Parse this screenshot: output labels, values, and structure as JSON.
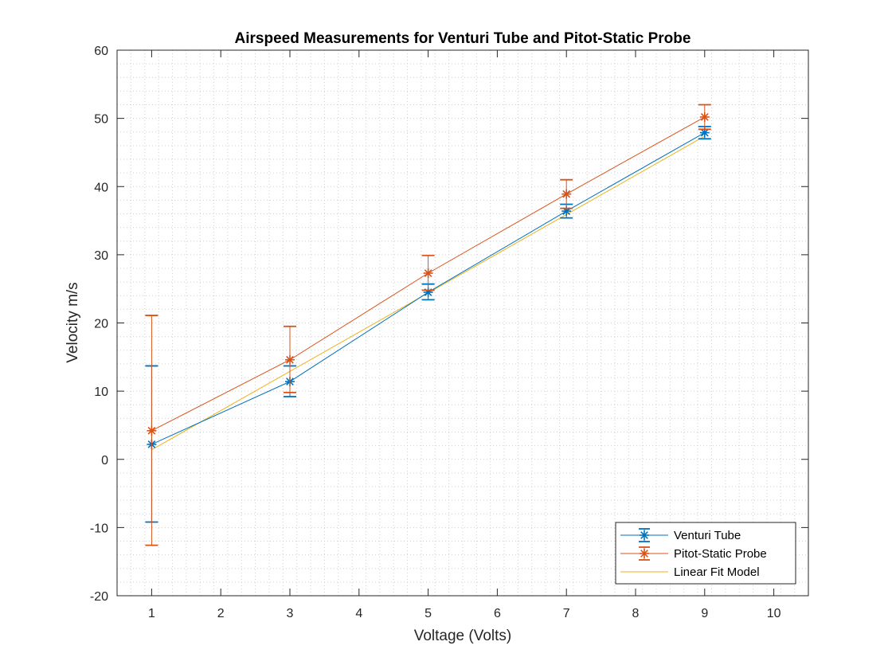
{
  "chart_data": {
    "type": "line",
    "title": "Airspeed Measurements for Venturi Tube and Pitot-Static Probe",
    "xlabel": "Voltage (Volts)",
    "ylabel": "Velocity m/s",
    "xlim": [
      0.5,
      10.5
    ],
    "ylim": [
      -20,
      60
    ],
    "xticks": [
      1,
      2,
      3,
      4,
      5,
      6,
      7,
      8,
      9,
      10
    ],
    "yticks": [
      -20,
      -10,
      0,
      10,
      20,
      30,
      40,
      50,
      60
    ],
    "grid": "minor-dotted",
    "legend_position": "bottom-right",
    "x": [
      1,
      3,
      5,
      7,
      9
    ],
    "series": [
      {
        "name": "Venturi Tube",
        "color": "#0072BD",
        "marker": "asterisk",
        "values": [
          2.2,
          11.4,
          24.5,
          36.4,
          47.9
        ],
        "error_low": [
          -9.2,
          9.2,
          23.4,
          35.4,
          47.0
        ],
        "error_high": [
          13.7,
          13.7,
          25.7,
          37.4,
          48.8
        ]
      },
      {
        "name": "Pitot-Static Probe",
        "color": "#D95319",
        "marker": "asterisk",
        "values": [
          4.2,
          14.6,
          27.3,
          38.9,
          50.2
        ],
        "error_low": [
          -12.6,
          9.8,
          24.8,
          36.8,
          48.4
        ],
        "error_high": [
          21.1,
          19.5,
          29.9,
          41.0,
          52.0
        ]
      },
      {
        "name": "Linear Fit Model",
        "color": "#EDB120",
        "marker": "none",
        "values": [
          1.4,
          12.9,
          24.4,
          35.9,
          47.4
        ]
      }
    ]
  }
}
